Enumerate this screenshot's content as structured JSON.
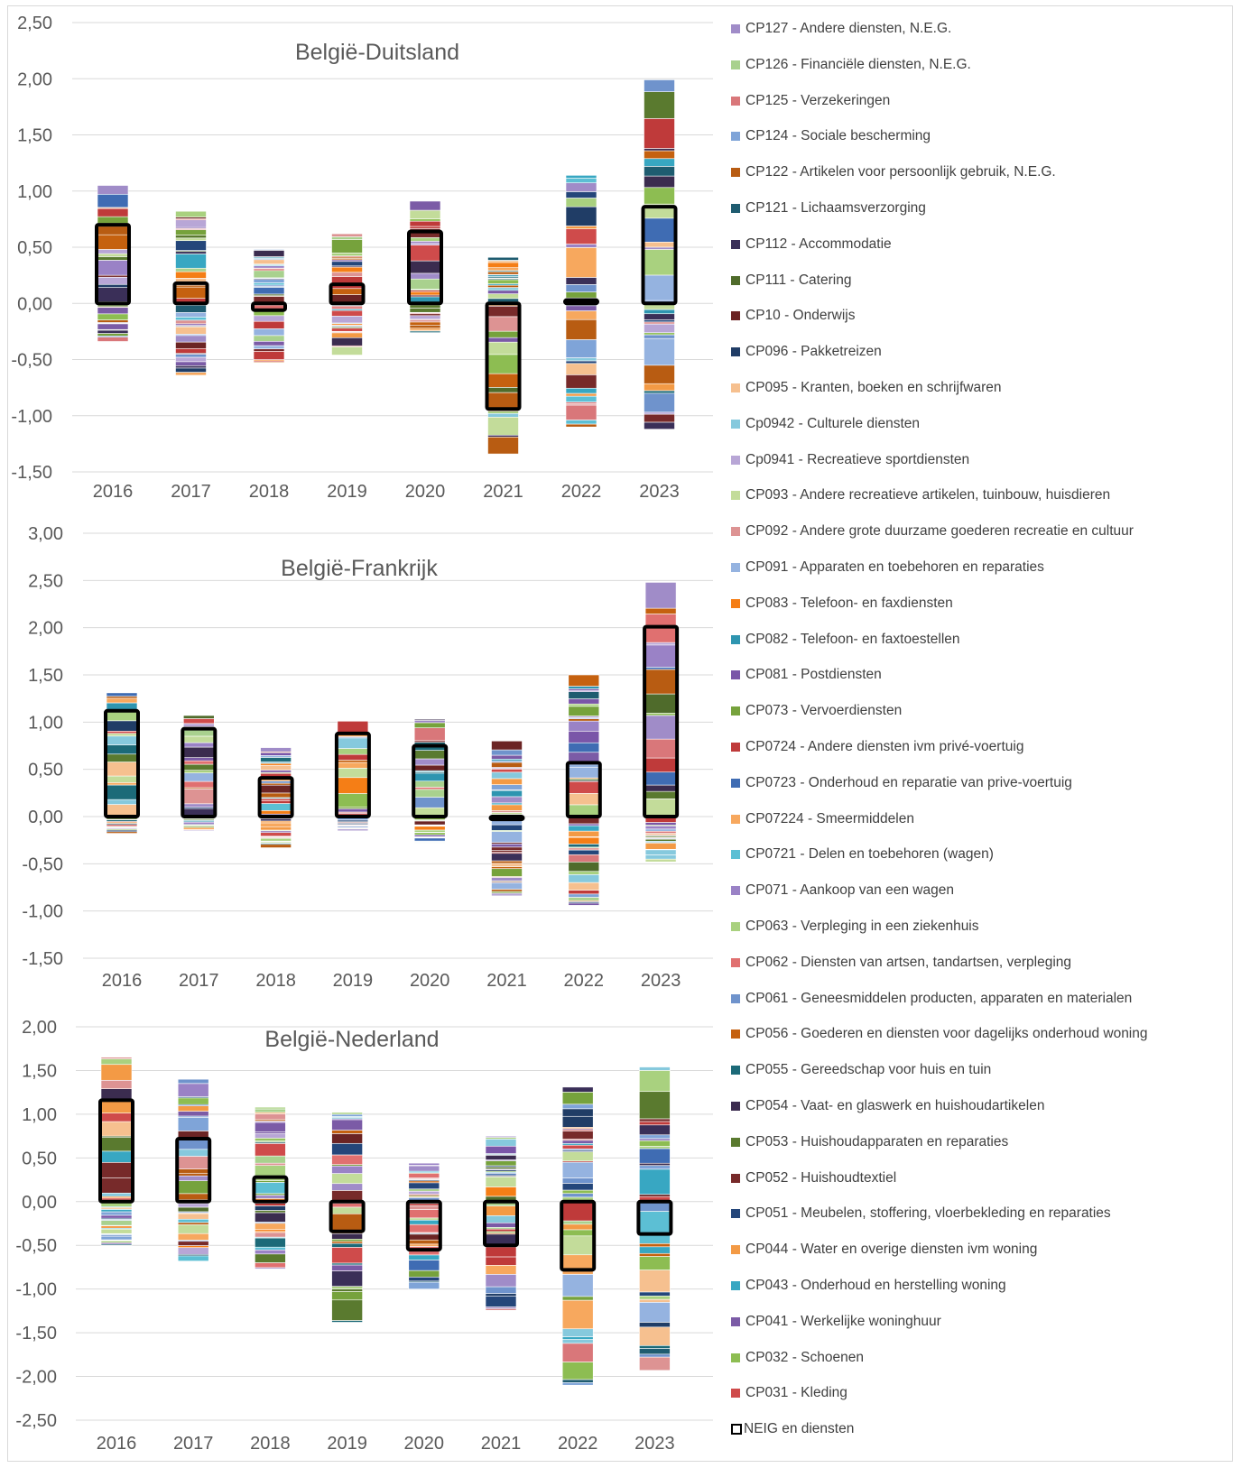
{
  "legend": {
    "items": [
      {
        "label": "CP127 - Andere diensten, N.E.G.",
        "color": "#a08cc8"
      },
      {
        "label": "CP126 - Financiële diensten, N.E.G.",
        "color": "#a9d18e"
      },
      {
        "label": "CP125 - Verzekeringen",
        "color": "#d9777a"
      },
      {
        "label": "CP124 - Sociale bescherming",
        "color": "#7fa4d8"
      },
      {
        "label": "CP122 - Artikelen voor persoonlijk gebruik, N.E.G.",
        "color": "#b85c12"
      },
      {
        "label": "CP121 - Lichaamsverzorging",
        "color": "#1f5c70"
      },
      {
        "label": "CP112 - Accommodatie",
        "color": "#3a2f58"
      },
      {
        "label": "CP111 - Catering",
        "color": "#4f6b2b"
      },
      {
        "label": "CP10 - Onderwijs",
        "color": "#6b2424"
      },
      {
        "label": "CP096 - Pakketreizen",
        "color": "#203d66"
      },
      {
        "label": "CP095 - Kranten, boeken en schrijfwaren",
        "color": "#f6c08f"
      },
      {
        "label": "Cp0942 - Culturele diensten",
        "color": "#86c9dd"
      },
      {
        "label": "Cp0941 - Recreatieve sportdiensten",
        "color": "#b8a6d6"
      },
      {
        "label": "CP093 - Andere recreatieve artikelen, tuinbouw, huisdieren",
        "color": "#c3dc9a"
      },
      {
        "label": "CP092 - Andere grote duurzame goederen recreatie en cultuur",
        "color": "#dd9393"
      },
      {
        "label": "CP091 - Apparaten en toebehoren en reparaties",
        "color": "#95b3e0"
      },
      {
        "label": "CP083 - Telefoon- en faxdiensten",
        "color": "#f57e16"
      },
      {
        "label": "CP082 - Telefoon- en faxtoestellen",
        "color": "#2e95b0"
      },
      {
        "label": "CP081 - Postdiensten",
        "color": "#7a56a8"
      },
      {
        "label": "CP073 - Vervoerdiensten",
        "color": "#76a23c"
      },
      {
        "label": "CP0724 - Andere diensten ivm privé-voertuig",
        "color": "#bf3a3a"
      },
      {
        "label": "CP0723 - Onderhoud en reparatie van prive-voertuig",
        "color": "#3f6cb3"
      },
      {
        "label": "CP07224 - Smeermiddelen",
        "color": "#f7a85e"
      },
      {
        "label": "CP0721 - Delen en toebehoren (wagen)",
        "color": "#5cbfd4"
      },
      {
        "label": "CP071 - Aankoop van een wagen",
        "color": "#9a82c6"
      },
      {
        "label": "CP063 - Verpleging in een ziekenhuis",
        "color": "#a9d17f"
      },
      {
        "label": "CP062 - Diensten van artsen, tandartsen, verpleging",
        "color": "#e07070"
      },
      {
        "label": "CP061 - Geneesmiddelen producten, apparaten en materialen",
        "color": "#6f93cc"
      },
      {
        "label": "CP056 - Goederen en diensten voor dagelijks onderhoud woning",
        "color": "#c5610f"
      },
      {
        "label": "CP055 - Gereedschap voor huis en tuin",
        "color": "#1c6a78"
      },
      {
        "label": "CP054 - Vaat- en glaswerk en huishoudartikelen",
        "color": "#3b2c4f"
      },
      {
        "label": "CP053 - Huishoudapparaten en reparaties",
        "color": "#5a7a2f"
      },
      {
        "label": "CP052 - Huishoudtextiel",
        "color": "#772a2a"
      },
      {
        "label": "CP051 - Meubelen, stoffering, vloerbekleding en reparaties",
        "color": "#24467a"
      },
      {
        "label": "CP044 - Water en overige diensten ivm woning",
        "color": "#f39a45"
      },
      {
        "label": "CP043 - Onderhoud en herstelling woning",
        "color": "#38a7c2"
      },
      {
        "label": "CP041 - Werkelijke woninghuur",
        "color": "#7b5ba6"
      },
      {
        "label": "CP032 - Schoenen",
        "color": "#8dbd52"
      },
      {
        "label": "CP031 - Kleding",
        "color": "#cf4b4b"
      },
      {
        "label": "NEIG en diensten",
        "outline": true
      }
    ]
  },
  "chart_data": [
    {
      "type": "bar",
      "title": "België-Duitsland",
      "categories": [
        "2016",
        "2017",
        "2018",
        "2019",
        "2020",
        "2021",
        "2022",
        "2023"
      ],
      "ylim": [
        -1.5,
        2.5
      ],
      "yticks": [
        "-1,50",
        "-1,00",
        "-0,50",
        "0,00",
        "0,50",
        "1,00",
        "1,50",
        "2,00",
        "2,50"
      ],
      "positive_totals": [
        1.05,
        0.82,
        0.48,
        0.62,
        0.91,
        0.41,
        1.14,
        1.99
      ],
      "negative_totals": [
        -0.35,
        -0.64,
        -0.53,
        -0.46,
        -0.26,
        -1.34,
        -1.1,
        -1.12
      ],
      "neig_en_diensten": [
        0.7,
        0.18,
        -0.06,
        0.17,
        0.64,
        -0.94,
        0.03,
        0.86
      ]
    },
    {
      "type": "bar",
      "title": "België-Frankrijk",
      "categories": [
        "2016",
        "2017",
        "2018",
        "2019",
        "2020",
        "2021",
        "2022",
        "2023"
      ],
      "ylim": [
        -1.5,
        3.0
      ],
      "yticks": [
        "-1,50",
        "-1,00",
        "-0,50",
        "0,00",
        "0,50",
        "1,00",
        "1,50",
        "2,00",
        "2,50",
        "3,00"
      ],
      "positive_totals": [
        1.31,
        1.07,
        0.73,
        1.01,
        1.03,
        0.8,
        1.5,
        2.48
      ],
      "negative_totals": [
        -0.18,
        -0.15,
        -0.33,
        -0.15,
        -0.29,
        -0.84,
        -0.94,
        -0.48
      ],
      "neig_en_diensten": [
        1.12,
        0.93,
        0.41,
        0.88,
        0.75,
        -0.03,
        0.57,
        2.01
      ]
    },
    {
      "type": "bar",
      "title": "België-Nederland",
      "categories": [
        "2016",
        "2017",
        "2018",
        "2019",
        "2020",
        "2021",
        "2022",
        "2023"
      ],
      "ylim": [
        -2.5,
        2.0
      ],
      "yticks": [
        "-2,50",
        "-2,00",
        "-1,50",
        "-1,00",
        "-0,50",
        "0,00",
        "0,50",
        "1,00",
        "1,50",
        "2,00"
      ],
      "positive_totals": [
        1.65,
        1.4,
        1.08,
        1.02,
        0.44,
        0.75,
        1.31,
        1.54
      ],
      "negative_totals": [
        -0.5,
        -0.68,
        -0.77,
        -1.38,
        -1.0,
        -1.24,
        -2.1,
        -1.93
      ],
      "neig_en_diensten": [
        1.16,
        0.72,
        0.28,
        -0.34,
        -0.55,
        -0.5,
        -0.78,
        -0.37
      ]
    }
  ]
}
